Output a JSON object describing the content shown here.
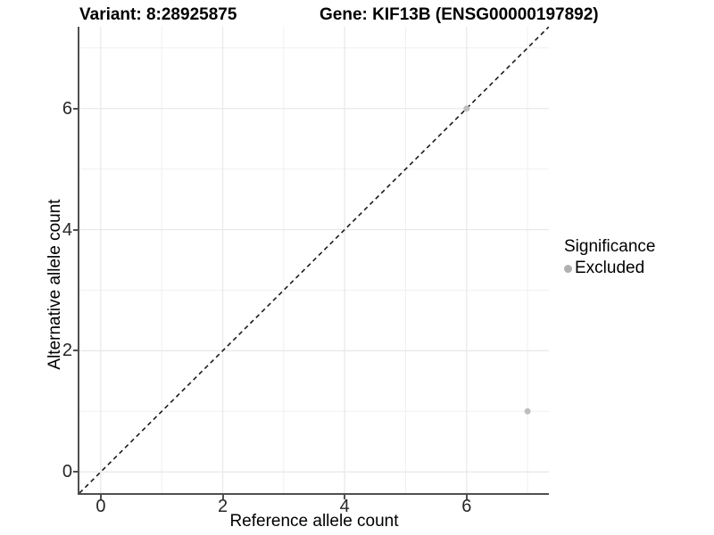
{
  "titles": {
    "variant": "Variant: 8:28925875",
    "gene": "Gene: KIF13B (ENSG00000197892)"
  },
  "axes": {
    "x": {
      "label": "Reference allele count",
      "ticks": [
        0,
        2,
        4,
        6
      ],
      "minor_ticks": [
        1,
        3,
        5,
        7
      ],
      "range": [
        -0.35,
        7.35
      ]
    },
    "y": {
      "label": "Alternative allele count",
      "ticks": [
        0,
        2,
        4,
        6
      ],
      "minor_ticks": [
        1,
        3,
        5,
        7
      ],
      "range": [
        -0.35,
        7.35
      ]
    }
  },
  "legend": {
    "title": "Significance",
    "items": [
      {
        "label": "Excluded",
        "color": "#b0b0b0"
      }
    ]
  },
  "colors": {
    "background": "#ffffff",
    "grid_major": "#e8e8e8",
    "grid_minor": "#f0f0f0",
    "axis_line": "#4f4f4f",
    "identity_line": "#1a1a1a",
    "point_excluded": "#bebebe"
  },
  "chart_data": {
    "type": "scatter",
    "title": "Variant: 8:28925875 | Gene: KIF13B (ENSG00000197892)",
    "xlabel": "Reference allele count",
    "ylabel": "Alternative allele count",
    "xlim": [
      -0.35,
      7.35
    ],
    "ylim": [
      -0.35,
      7.35
    ],
    "grid": "on",
    "grid_major_values": [
      0,
      2,
      4,
      6
    ],
    "grid_minor_values": [
      1,
      3,
      5,
      7
    ],
    "legend_position": "right",
    "identity_line": {
      "style": "dashed",
      "from": [
        -0.35,
        -0.35
      ],
      "to": [
        7.35,
        7.35
      ]
    },
    "series": [
      {
        "name": "Excluded",
        "color": "#bebebe",
        "points": [
          [
            6,
            6
          ],
          [
            7,
            1
          ]
        ]
      }
    ]
  }
}
